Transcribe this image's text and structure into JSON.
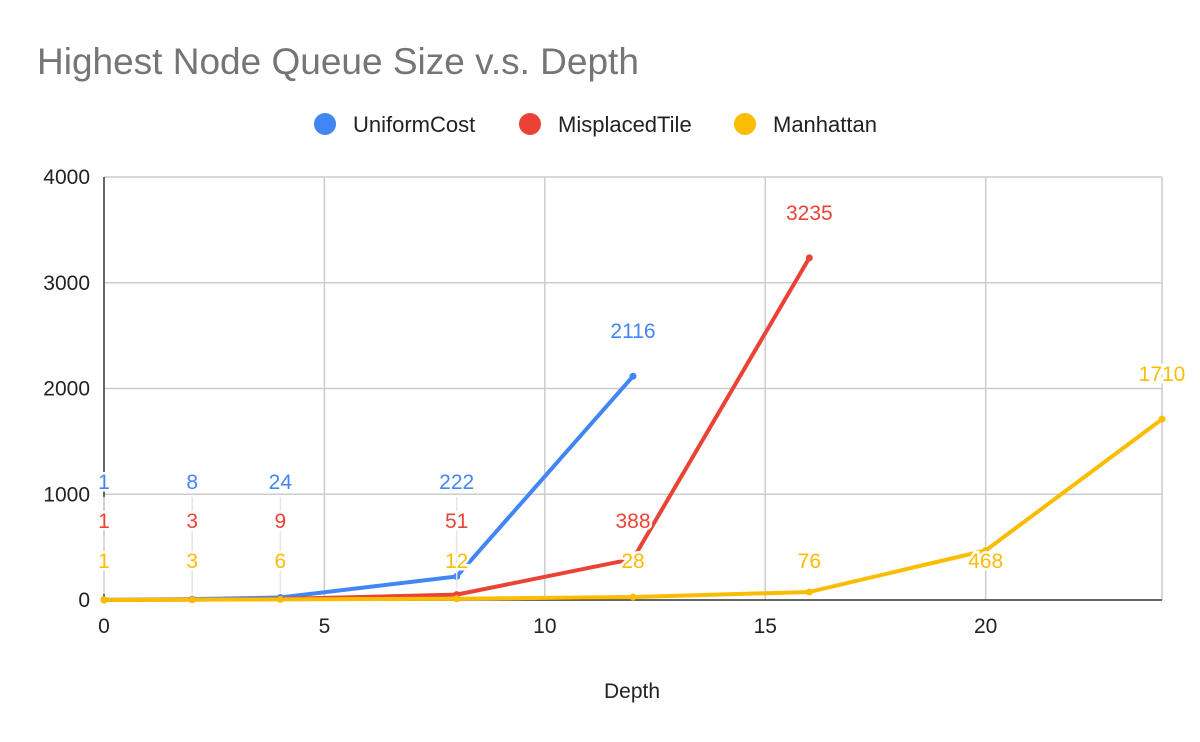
{
  "chart_data": {
    "type": "line",
    "title": "Highest Node Queue Size v.s. Depth",
    "xlabel": "Depth",
    "ylabel": "",
    "xlim": [
      0,
      24
    ],
    "ylim": [
      0,
      4000
    ],
    "xticks": [
      0,
      5,
      10,
      15,
      20
    ],
    "yticks": [
      0,
      1000,
      2000,
      3000,
      4000
    ],
    "grid": true,
    "legend_position": "top",
    "series": [
      {
        "name": "UniformCost",
        "color": "#4285f4",
        "x": [
          0,
          2,
          4,
          8,
          12
        ],
        "values": [
          1,
          8,
          24,
          222,
          2116
        ]
      },
      {
        "name": "MisplacedTile",
        "color": "#ea4335",
        "x": [
          0,
          2,
          4,
          8,
          12,
          16
        ],
        "values": [
          1,
          3,
          9,
          51,
          388,
          3235
        ]
      },
      {
        "name": "Manhattan",
        "color": "#fbbc04",
        "x": [
          0,
          2,
          4,
          8,
          12,
          16,
          20,
          24
        ],
        "values": [
          1,
          3,
          6,
          12,
          28,
          76,
          468,
          1710
        ]
      }
    ]
  }
}
